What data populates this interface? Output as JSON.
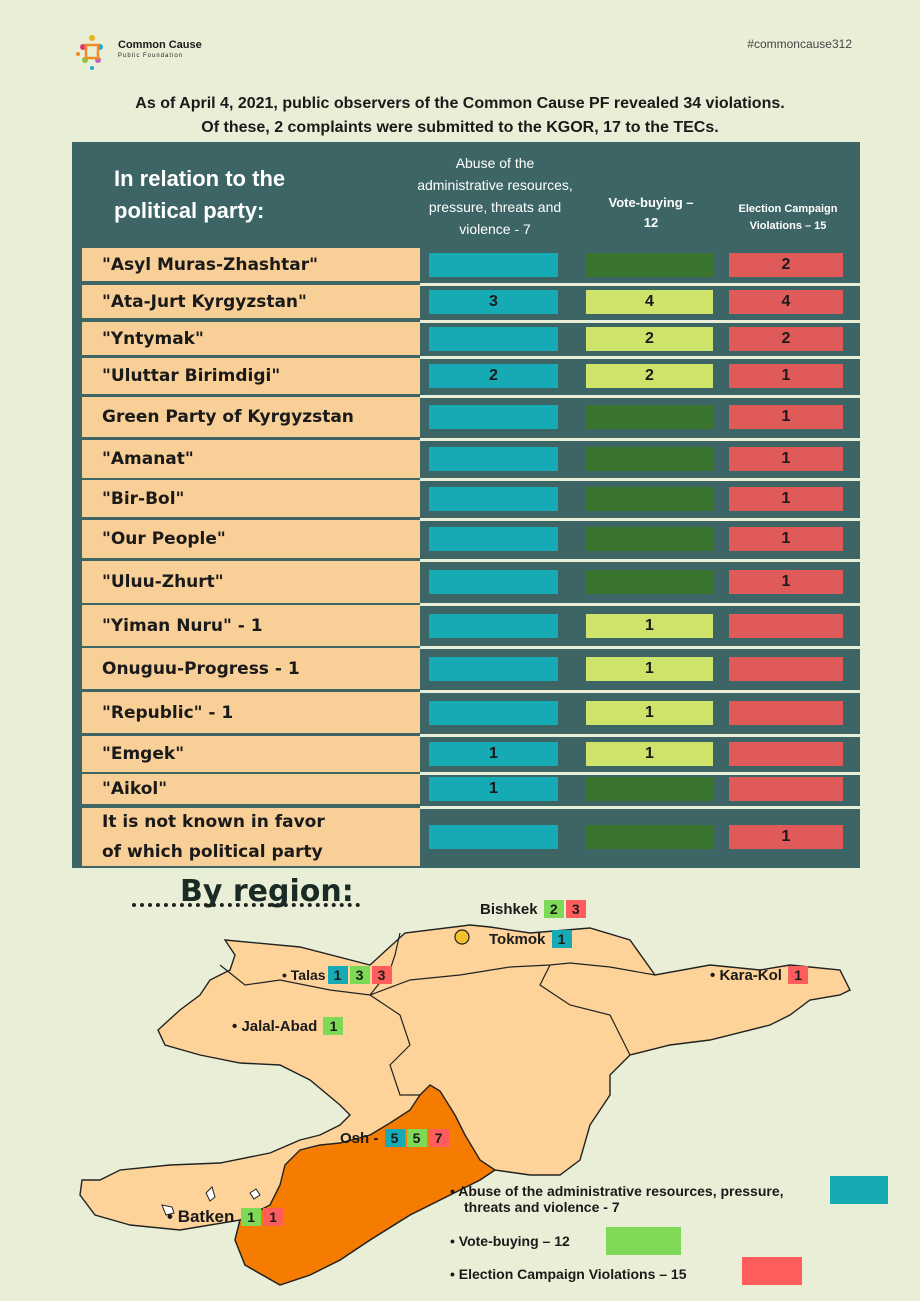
{
  "brand": {
    "name": "Common Cause",
    "sub": "Public Foundation"
  },
  "hashtag": "#commoncause312",
  "intro": {
    "line1": "As of April 4, 2021, public observers of the Common Cause PF revealed 34 violations.",
    "line2": "Of these, 2 complaints were submitted to the KGOR, 17 to the TECs."
  },
  "table": {
    "title_line1": "In relation to the",
    "title_line2": "political party:",
    "col1_lines": [
      "Abuse of the",
      "administrative resources,",
      "pressure, threats and",
      "violence - 7"
    ],
    "col2_lines": [
      "Vote-buying –",
      "12"
    ],
    "col3_lines": [
      "Election Campaign",
      "Violations – 15"
    ],
    "rows": [
      {
        "party": "\"Asyl Muras-Zhashtar\"",
        "abuse": "",
        "vote": "",
        "campaign": "2"
      },
      {
        "party": "\"Ata-Jurt Kyrgyzstan\"",
        "abuse": "3",
        "vote": "4",
        "campaign": "4"
      },
      {
        "party": "\"Yntymak\"",
        "abuse": "",
        "vote": "2",
        "campaign": "2"
      },
      {
        "party": "\"Uluttar Birimdigi\"",
        "abuse": "2",
        "vote": "2",
        "campaign": "1"
      },
      {
        "party": "Green Party of Kyrgyzstan",
        "abuse": "",
        "vote": "",
        "campaign": "1"
      },
      {
        "party": "\"Amanat\"",
        "abuse": "",
        "vote": "",
        "campaign": "1"
      },
      {
        "party": "\"Bir-Bol\"",
        "abuse": "",
        "vote": "",
        "campaign": "1"
      },
      {
        "party": "\"Our People\"",
        "abuse": "",
        "vote": "",
        "campaign": "1"
      },
      {
        "party": "\"Uluu-Zhurt\"",
        "abuse": "",
        "vote": "",
        "campaign": "1"
      },
      {
        "party": "\"Yiman Nuru\" - 1",
        "abuse": "",
        "vote": "1",
        "campaign": ""
      },
      {
        "party": "Onuguu-Progress - 1",
        "abuse": "",
        "vote": "1",
        "campaign": ""
      },
      {
        "party": "\"Republic\" - 1",
        "abuse": "",
        "vote": "1",
        "campaign": ""
      },
      {
        "party": "\"Emgek\"",
        "abuse": "1",
        "vote": "1",
        "campaign": ""
      },
      {
        "party": "\"Aikol\"",
        "abuse": "1",
        "vote": "",
        "campaign": ""
      },
      {
        "party_lines": [
          "It is not known in favor",
          "of which political party"
        ],
        "abuse": "",
        "vote": "",
        "campaign": "1"
      }
    ]
  },
  "region": {
    "title": "By region:",
    "cities": [
      {
        "name": "Bishkek",
        "abuse": "",
        "vote": "2",
        "campaign": "3"
      },
      {
        "name": "Tokmok",
        "abuse": "1",
        "vote": "",
        "campaign": ""
      },
      {
        "name": "Talas",
        "abuse": "1",
        "vote": "3",
        "campaign": "3"
      },
      {
        "name": "Kara-Kol",
        "abuse": "",
        "vote": "",
        "campaign": "1"
      },
      {
        "name": "Jalal-Abad",
        "abuse": "",
        "vote": "1",
        "campaign": ""
      },
      {
        "name": "Osh -",
        "abuse": "5",
        "vote": "5",
        "campaign": "7"
      },
      {
        "name": "Batken",
        "abuse": "",
        "vote": "1",
        "campaign": "1"
      }
    ]
  },
  "legend": {
    "abuse_line1": "Abuse of the administrative resources, pressure,",
    "abuse_line2": "threats and violence - 7",
    "vote": "Vote-buying – 12",
    "campaign": "Election Campaign Violations – 15"
  },
  "colors": {
    "background": "#e8efd6",
    "table": "#3d6565",
    "abuse": "#16aab4",
    "vote_active": "#cde36a",
    "vote_empty": "#3a752f",
    "campaign": "#e05a5a",
    "map_land": "#fdd39a",
    "osh_region": "#f57c00"
  }
}
